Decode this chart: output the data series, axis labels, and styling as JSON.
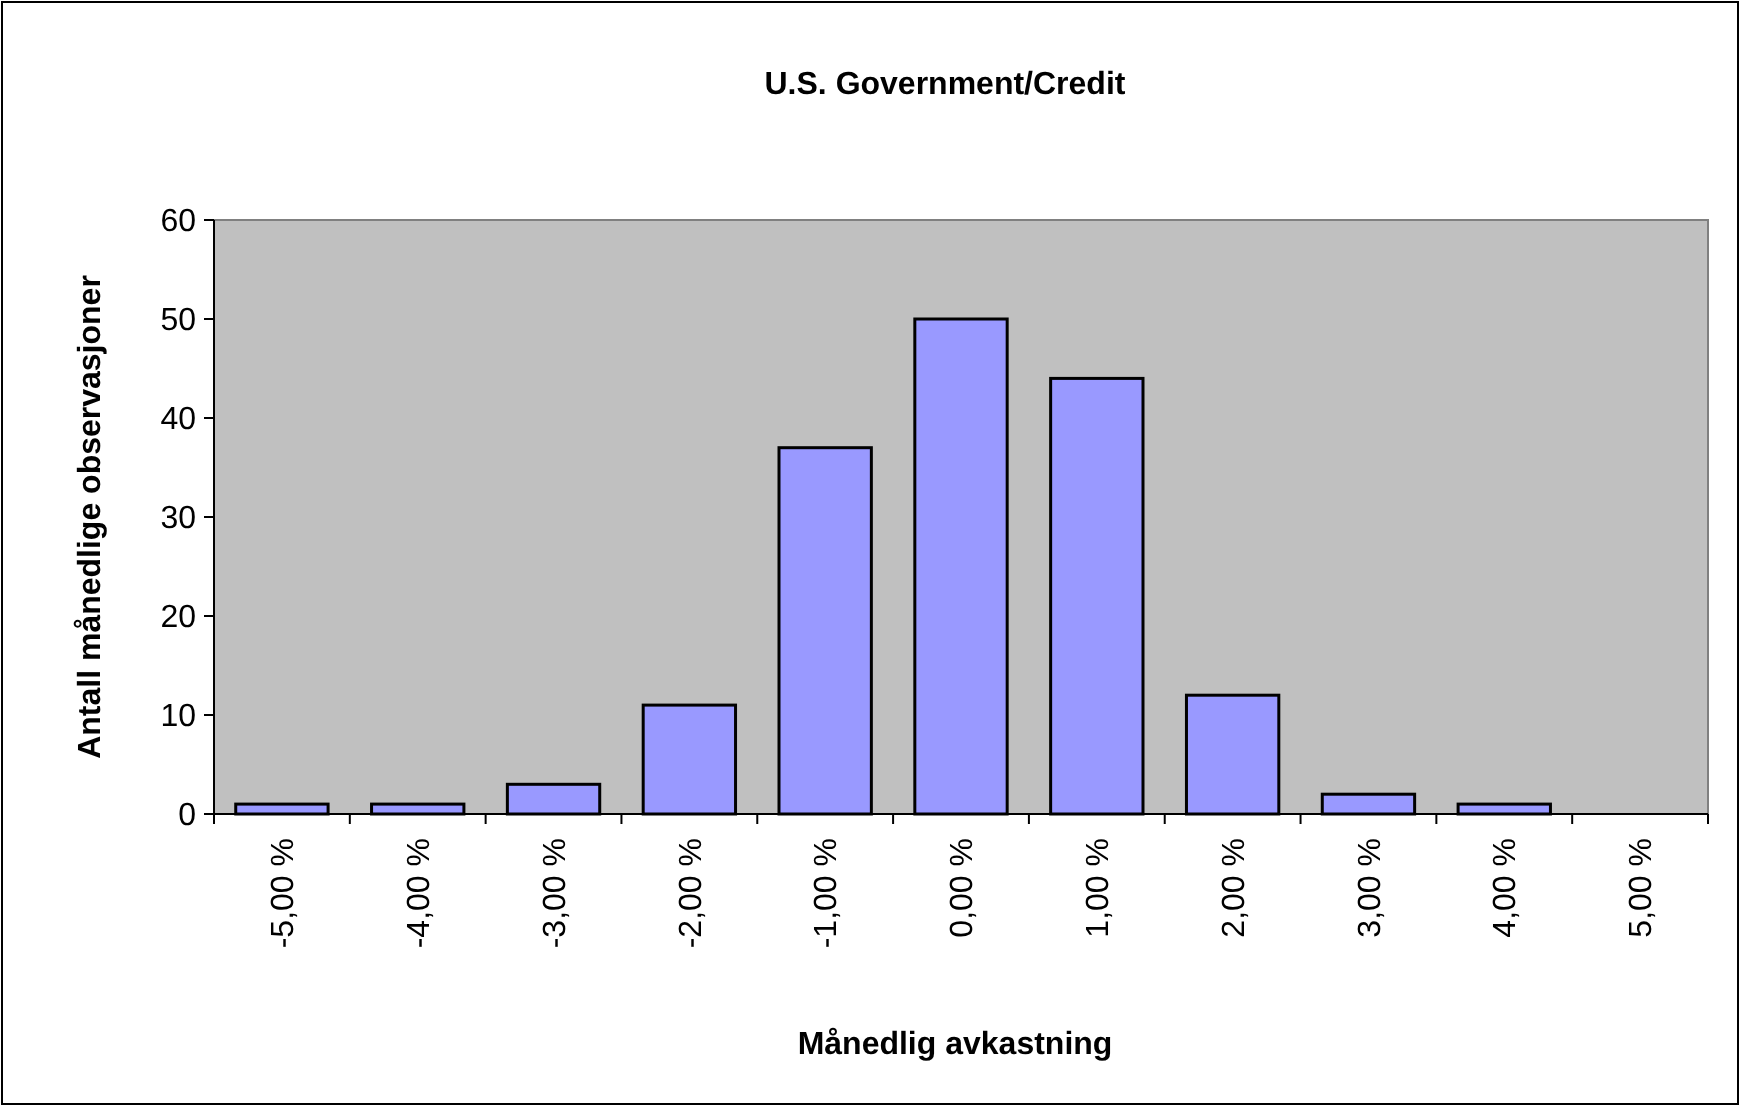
{
  "chart_data": {
    "type": "bar",
    "title": "U.S. Government/Credit",
    "xlabel": "Månedlig avkastning",
    "ylabel": "Antall månedlige observasjoner",
    "categories": [
      "-5,00 %",
      "-4,00 %",
      "-3,00 %",
      "-2,00 %",
      "-1,00 %",
      "0,00 %",
      "1,00 %",
      "2,00 %",
      "3,00 %",
      "4,00 %",
      "5,00 %"
    ],
    "values": [
      1,
      1,
      3,
      11,
      37,
      50,
      44,
      12,
      2,
      1,
      0
    ],
    "color": "#9999ff",
    "ylim": [
      0,
      60
    ],
    "yticks": [
      0,
      10,
      20,
      30,
      40,
      50,
      60
    ]
  }
}
